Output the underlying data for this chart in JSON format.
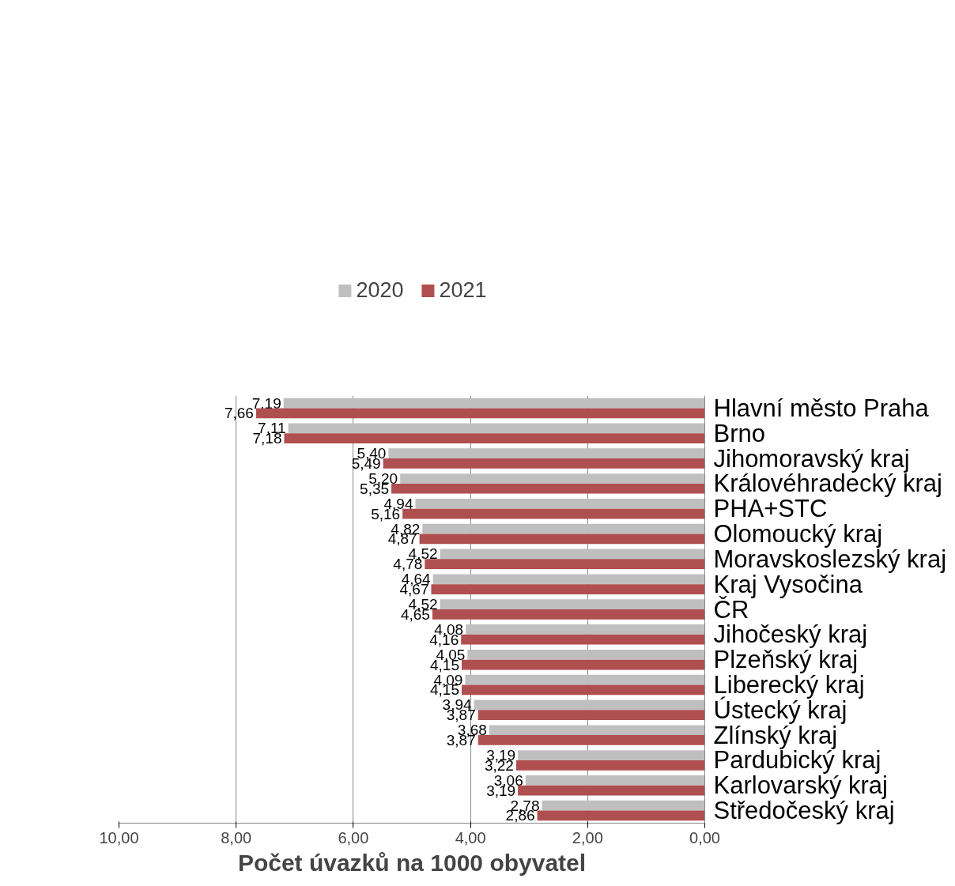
{
  "chart_data": {
    "type": "bar",
    "orientation": "horizontal",
    "xlabel": "Počet úvazků na 1000 obyvatel",
    "categories": [
      "Hlavní město Praha",
      "Brno",
      "Jihomoravský kraj",
      "Královéhradecký kraj",
      "PHA+STC",
      "Olomoucký kraj",
      "Moravskoslezský kraj",
      "Kraj Vysočina",
      "ČR",
      "Jihočeský kraj",
      "Plzeňský kraj",
      "Liberecký kraj",
      "Ústecký kraj",
      "Zlínský kraj",
      "Pardubický kraj",
      "Karlovarský kraj",
      "Středočeský kraj"
    ],
    "series": [
      {
        "name": "2020",
        "color": "#bfbfbf",
        "values": [
          7.19,
          7.11,
          5.4,
          5.2,
          4.94,
          4.82,
          4.52,
          4.64,
          4.52,
          4.08,
          4.05,
          4.09,
          3.94,
          3.68,
          3.19,
          3.06,
          2.78
        ],
        "value_labels": [
          "7,19",
          "7,11",
          "5,40",
          "5,20",
          "4,94",
          "4,82",
          "4,52",
          "4,64",
          "4,52",
          "4,08",
          "4,05",
          "4,09",
          "3,94",
          "3,68",
          "3,19",
          "3,06",
          "2,78"
        ]
      },
      {
        "name": "2021",
        "color": "#b04f4f",
        "values": [
          7.66,
          7.18,
          5.49,
          5.35,
          5.16,
          4.87,
          4.78,
          4.67,
          4.65,
          4.16,
          4.15,
          4.15,
          3.87,
          3.87,
          3.22,
          3.19,
          2.86
        ],
        "value_labels": [
          "7,66",
          "7,18",
          "5,49",
          "5,35",
          "5,16",
          "4,87",
          "4,78",
          "4,67",
          "4,65",
          "4,16",
          "4,15",
          "4,15",
          "3,87",
          "3,87",
          "3,22",
          "3,19",
          "2,86"
        ]
      }
    ],
    "xlim": [
      10,
      0
    ],
    "xticks": [
      {
        "value": 10,
        "label": "10,00"
      },
      {
        "value": 8,
        "label": "8,00"
      },
      {
        "value": 6,
        "label": "6,00"
      },
      {
        "value": 4,
        "label": "4,00"
      },
      {
        "value": 2,
        "label": "2,00"
      },
      {
        "value": 0,
        "label": "0,00"
      }
    ],
    "grid": "x",
    "legend": "top"
  }
}
